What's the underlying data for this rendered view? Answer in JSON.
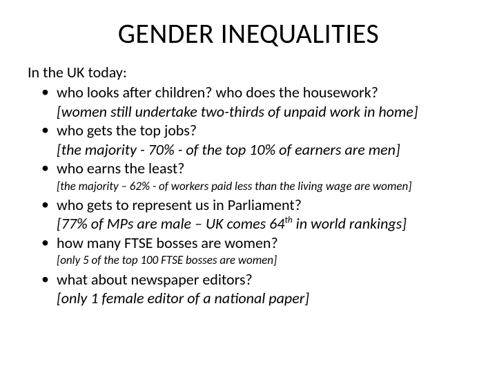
{
  "title": "GENDER INEQUALITIES",
  "intro": "In the UK today:",
  "items": [
    {
      "question": "who looks after children? who does the housework?",
      "answer": "[women still undertake two-thirds of unpaid work in home]",
      "answer_style": "large"
    },
    {
      "question": "who gets the top jobs?",
      "answer": "[the majority - 70% - of the top 10% of earners are men]",
      "answer_style": "large"
    },
    {
      "question": "who earns the least?",
      "answer": "[the majority – 62% -  of workers paid less than the living wage are women]",
      "answer_style": "small"
    },
    {
      "question": "who gets to represent us in Parliament?",
      "answer_html": "[77% of MPs are male – UK comes 64<sup>th</sup> in world rankings]",
      "answer_style": "large"
    },
    {
      "question": "how many FTSE bosses are women?",
      "answer": "[only 5 of the top 100 FTSE bosses are women]",
      "answer_style": "small"
    },
    {
      "question": "what about newspaper editors?",
      "answer": "[only 1 female editor of a national paper]",
      "answer_style": "large"
    }
  ],
  "colors": {
    "background": "#ffffff",
    "text": "#000000"
  },
  "fonts": {
    "title_size_pt": 40,
    "body_size_pt": 22,
    "small_answer_size_pt": 17
  }
}
